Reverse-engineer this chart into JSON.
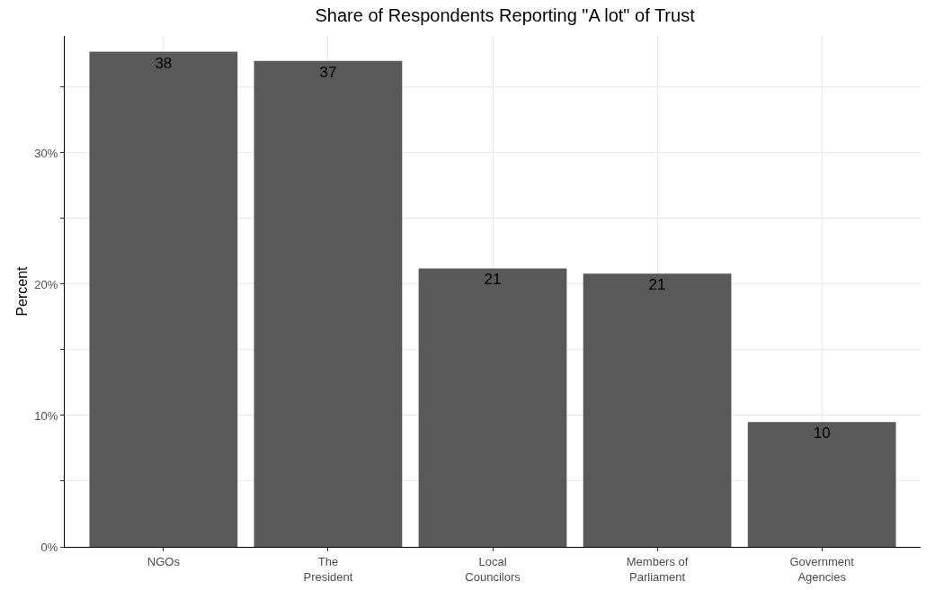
{
  "chart_data": {
    "type": "bar",
    "title": "Share of Respondents Reporting \"A lot\" of Trust",
    "ylabel": "Percent",
    "categories": [
      "NGOs",
      "The President",
      "Local Councilors",
      "Members of Parliament",
      "Government Agencies"
    ],
    "values": [
      37.7,
      37.0,
      21.2,
      20.8,
      9.5
    ],
    "value_labels": [
      "38",
      "37",
      "21",
      "21",
      "10"
    ],
    "color": "#595959",
    "ylim": [
      0,
      38.9
    ],
    "yticks": [
      {
        "value": 0,
        "label": "0%"
      },
      {
        "value": 5,
        "label": null
      },
      {
        "value": 10,
        "label": "10%"
      },
      {
        "value": 15,
        "label": null
      },
      {
        "value": 20,
        "label": "20%"
      },
      {
        "value": 25,
        "label": null
      },
      {
        "value": 30,
        "label": "30%"
      },
      {
        "value": 35,
        "label": null
      }
    ],
    "grid": true,
    "legend": false
  }
}
